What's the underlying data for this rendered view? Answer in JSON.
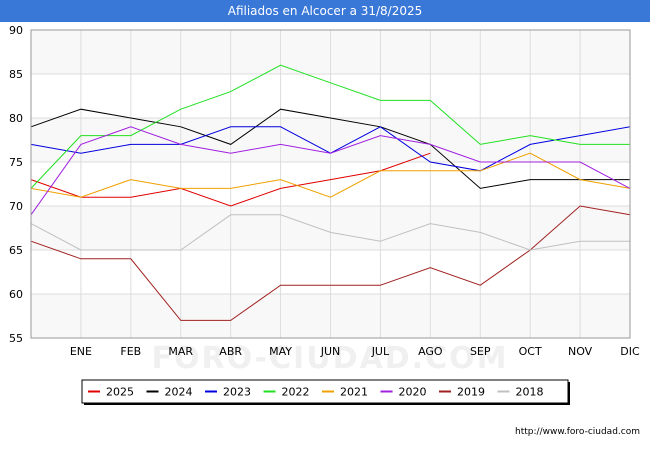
{
  "header": {
    "title": "Afiliados en Alcocer a 31/8/2025"
  },
  "footer": {
    "source": "http://www.foro-ciudad.com"
  },
  "watermark": "FORO-CIUDAD.COM",
  "chart_data": {
    "type": "line",
    "title": "Afiliados en Alcocer a 31/8/2025",
    "xlabel": "",
    "ylabel": "",
    "categories": [
      "",
      "ENE",
      "FEB",
      "MAR",
      "ABR",
      "MAY",
      "JUN",
      "JUL",
      "AGO",
      "SEP",
      "OCT",
      "NOV",
      "DIC"
    ],
    "ylim": [
      55,
      90
    ],
    "yticks": [
      55,
      60,
      65,
      70,
      75,
      80,
      85,
      90
    ],
    "grid": true,
    "legend_position": "bottom",
    "series": [
      {
        "name": "2025",
        "color": "#e00000",
        "values": [
          73,
          71,
          71,
          72,
          70,
          72,
          73,
          74,
          76,
          null,
          null,
          null,
          null
        ]
      },
      {
        "name": "2024",
        "color": "#000000",
        "values": [
          79,
          81,
          80,
          79,
          77,
          81,
          80,
          79,
          77,
          72,
          73,
          73,
          73
        ]
      },
      {
        "name": "2023",
        "color": "#0000e0",
        "values": [
          77,
          76,
          77,
          77,
          79,
          79,
          76,
          79,
          75,
          74,
          77,
          78,
          79
        ]
      },
      {
        "name": "2022",
        "color": "#20e020",
        "values": [
          72,
          78,
          78,
          81,
          83,
          86,
          84,
          82,
          82,
          77,
          78,
          77,
          77
        ]
      },
      {
        "name": "2021",
        "color": "#f0a000",
        "values": [
          72,
          71,
          73,
          72,
          72,
          73,
          71,
          74,
          74,
          74,
          76,
          73,
          72
        ]
      },
      {
        "name": "2020",
        "color": "#a020e0",
        "values": [
          69,
          77,
          79,
          77,
          76,
          77,
          76,
          78,
          77,
          75,
          75,
          75,
          72
        ]
      },
      {
        "name": "2019",
        "color": "#a02020",
        "values": [
          66,
          64,
          64,
          57,
          57,
          61,
          61,
          61,
          63,
          61,
          65,
          70,
          69
        ]
      },
      {
        "name": "2018",
        "color": "#c0c0c0",
        "values": [
          68,
          65,
          65,
          65,
          69,
          69,
          67,
          66,
          68,
          67,
          65,
          66,
          66
        ]
      }
    ]
  }
}
